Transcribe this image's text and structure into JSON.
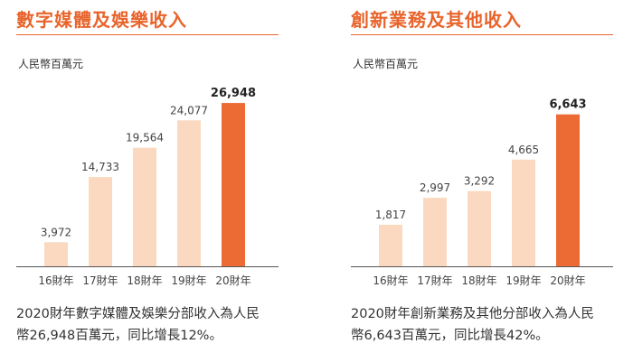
{
  "panels": [
    {
      "title": "數字媒體及娛樂收入",
      "unit": "人民幣百萬元",
      "note_line1": "2020財年數字媒體及娛樂分部收入為人民",
      "note_line2": "幣26,948百萬元，同比增長12%。"
    },
    {
      "title": "創新業務及其他收入",
      "unit": "人民幣百萬元",
      "note_line1": "2020財年創新業務及其他分部收入為人民",
      "note_line2": "幣6,643百萬元，同比增長42%。"
    }
  ],
  "colors": {
    "accent": "#e8642c",
    "bar_light": "#fbd9c0",
    "bar_highlight": "#ec6a33",
    "axis": "#555555"
  },
  "chart_data": [
    {
      "type": "bar",
      "title": "數字媒體及娛樂收入",
      "ylabel": "人民幣百萬元",
      "categories": [
        "16財年",
        "17財年",
        "18財年",
        "19財年",
        "20財年"
      ],
      "values": [
        3972,
        14733,
        19564,
        24077,
        26948
      ],
      "value_labels": [
        "3,972",
        "14,733",
        "19,564",
        "24,077",
        "26,948"
      ],
      "highlight_index": 4,
      "ylim": [
        0,
        28300
      ],
      "grid": false
    },
    {
      "type": "bar",
      "title": "創新業務及其他收入",
      "ylabel": "人民幣百萬元",
      "categories": [
        "16財年",
        "17財年",
        "18財年",
        "19財年",
        "20財年"
      ],
      "values": [
        1817,
        2997,
        3292,
        4665,
        6643
      ],
      "value_labels": [
        "1,817",
        "2,997",
        "3,292",
        "4,665",
        "6,643"
      ],
      "highlight_index": 4,
      "ylim": [
        0,
        7500
      ],
      "grid": false
    }
  ]
}
